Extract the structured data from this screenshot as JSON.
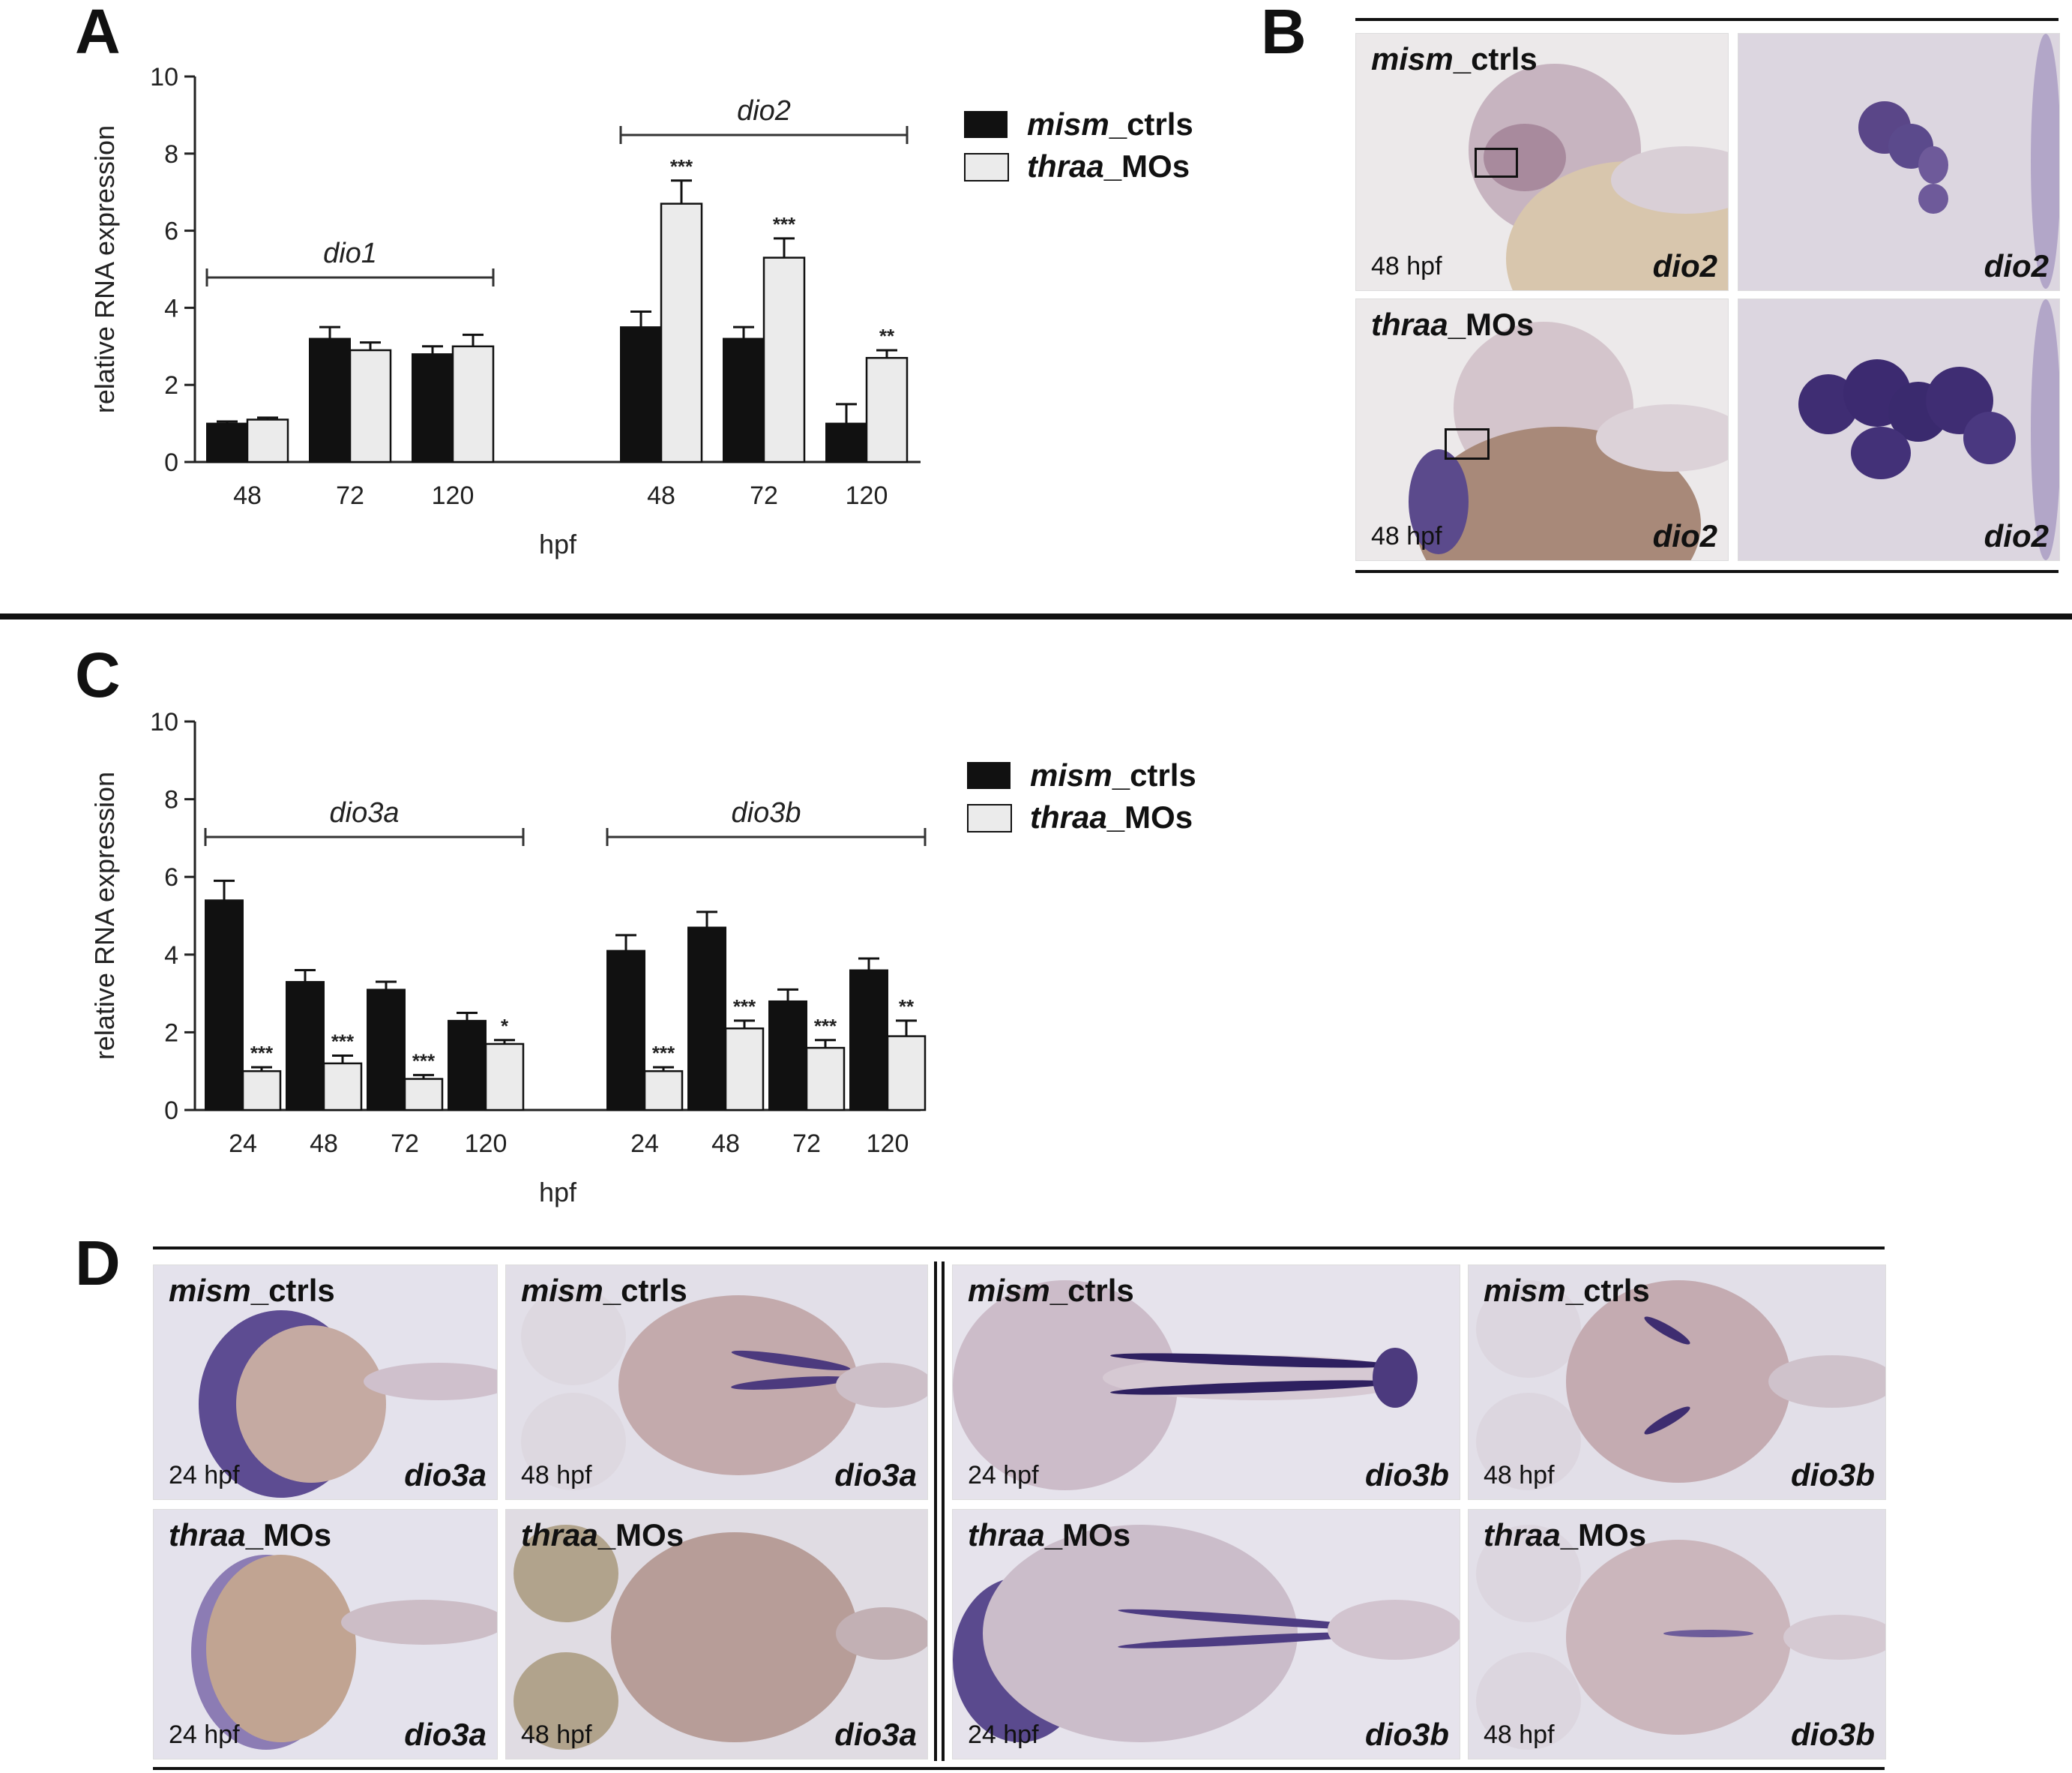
{
  "panels": {
    "a": {
      "letter": "A"
    },
    "b": {
      "letter": "B"
    },
    "c": {
      "letter": "C"
    },
    "d": {
      "letter": "D"
    }
  },
  "legend": {
    "ctrl_italic": "mism",
    "ctrl_rest": "_ctrls",
    "mo_italic": "thraa",
    "mo_rest": "_MOs",
    "colors": {
      "ctrl": "#111111",
      "mo": "#ebebeb"
    }
  },
  "chart_data": [
    {
      "id": "A",
      "type": "bar",
      "ylabel": "relative RNA expression",
      "xlabel": "hpf",
      "ylim": [
        0,
        10
      ],
      "yticks": [
        "0",
        "2",
        "4",
        "6",
        "8",
        "10"
      ],
      "groups": [
        {
          "gene": "dio1",
          "categories": [
            "48",
            "72",
            "120"
          ],
          "ctrl": [
            1.0,
            3.2,
            2.8
          ],
          "ctrl_err": [
            0.05,
            0.3,
            0.2
          ],
          "mo": [
            1.1,
            2.9,
            3.0
          ],
          "mo_err": [
            0.05,
            0.2,
            0.3
          ],
          "sig": [
            "",
            "",
            ""
          ]
        },
        {
          "gene": "dio2",
          "categories": [
            "48",
            "72",
            "120"
          ],
          "ctrl": [
            3.5,
            3.2,
            1.0
          ],
          "ctrl_err": [
            0.4,
            0.3,
            0.5
          ],
          "mo": [
            6.7,
            5.3,
            2.7
          ],
          "mo_err": [
            0.6,
            0.5,
            0.2
          ],
          "sig": [
            "***",
            "***",
            "**"
          ]
        }
      ]
    },
    {
      "id": "C",
      "type": "bar",
      "ylabel": "relative RNA expression",
      "xlabel": "hpf",
      "ylim": [
        0,
        10
      ],
      "yticks": [
        "0",
        "2",
        "4",
        "6",
        "8",
        "10"
      ],
      "groups": [
        {
          "gene": "dio3a",
          "categories": [
            "24",
            "48",
            "72",
            "120"
          ],
          "ctrl": [
            5.4,
            3.3,
            3.1,
            2.3
          ],
          "ctrl_err": [
            0.5,
            0.3,
            0.2,
            0.2
          ],
          "mo": [
            1.0,
            1.2,
            0.8,
            1.7
          ],
          "mo_err": [
            0.1,
            0.2,
            0.1,
            0.1
          ],
          "sig": [
            "***",
            "***",
            "***",
            "*"
          ]
        },
        {
          "gene": "dio3b",
          "categories": [
            "24",
            "48",
            "72",
            "120"
          ],
          "ctrl": [
            4.1,
            4.7,
            2.8,
            3.6
          ],
          "ctrl_err": [
            0.4,
            0.4,
            0.3,
            0.3
          ],
          "mo": [
            1.0,
            2.1,
            1.6,
            1.9
          ],
          "mo_err": [
            0.1,
            0.2,
            0.2,
            0.4
          ],
          "sig": [
            "***",
            "***",
            "***",
            "**"
          ]
        }
      ]
    }
  ],
  "panel_b": {
    "images": [
      {
        "cond_italic": "mism",
        "cond_rest": "_ctrls",
        "stage": "48 hpf",
        "gene": "dio2"
      },
      {
        "cond_italic": "",
        "cond_rest": "",
        "stage": "",
        "gene": "dio2"
      },
      {
        "cond_italic": "thraa",
        "cond_rest": "_MOs",
        "stage": "48 hpf",
        "gene": "dio2"
      },
      {
        "cond_italic": "",
        "cond_rest": "",
        "stage": "",
        "gene": "dio2"
      }
    ]
  },
  "panel_d": {
    "images": [
      {
        "cond_italic": "mism",
        "cond_rest": "_ctrls",
        "stage": "24 hpf",
        "gene": "dio3a"
      },
      {
        "cond_italic": "mism",
        "cond_rest": "_ctrls",
        "stage": "48 hpf",
        "gene": "dio3a"
      },
      {
        "cond_italic": "mism",
        "cond_rest": "_ctrls",
        "stage": "24 hpf",
        "gene": "dio3b"
      },
      {
        "cond_italic": "mism",
        "cond_rest": "_ctrls",
        "stage": "48 hpf",
        "gene": "dio3b"
      },
      {
        "cond_italic": "thraa",
        "cond_rest": "_MOs",
        "stage": "24 hpf",
        "gene": "dio3a"
      },
      {
        "cond_italic": "thraa",
        "cond_rest": "_MOs",
        "stage": "48 hpf",
        "gene": "dio3a"
      },
      {
        "cond_italic": "thraa",
        "cond_rest": "_MOs",
        "stage": "24 hpf",
        "gene": "dio3b"
      },
      {
        "cond_italic": "thraa",
        "cond_rest": "_MOs",
        "stage": "48 hpf",
        "gene": "dio3b"
      }
    ]
  }
}
